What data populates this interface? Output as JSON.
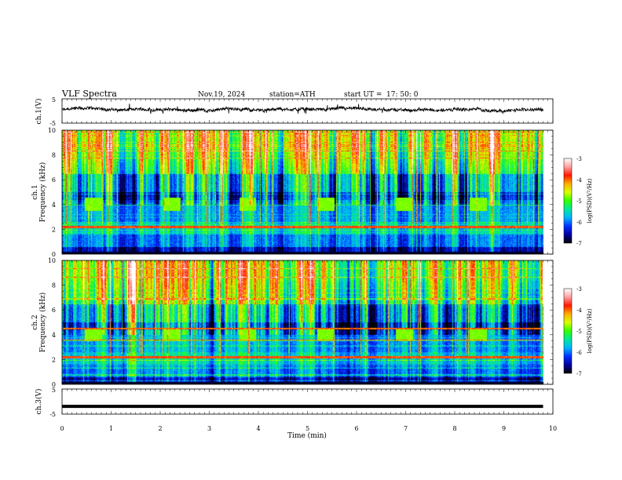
{
  "header": {
    "title": "VLF  Spectra",
    "date": "Nov.19, 2024",
    "station": "station=ATH",
    "start_label": "start  UT  =",
    "start_time": "17: 50: 0"
  },
  "chart_data": [
    {
      "type": "line",
      "name": "ch1-waveform",
      "ylabel": "ch.1(V)",
      "ylim": [
        -5,
        5
      ],
      "ticks": [
        "5",
        "-5"
      ],
      "xlim": [
        0,
        10
      ],
      "series": [
        {
          "x": [
            0,
            9.8
          ],
          "approx_level": 0.5,
          "noise_amplitude": 1.2
        }
      ]
    },
    {
      "type": "heatmap",
      "name": "ch1-spectrogram",
      "ylabel_line1": "ch.1",
      "ylabel_line2": "Frequency (kHz)",
      "ylim": [
        0,
        10
      ],
      "yticks": [
        "10",
        "8",
        "6",
        "4",
        "2",
        "0"
      ],
      "xlim": [
        0,
        10
      ],
      "data_end_min": 9.8,
      "transmitter_bursts_min": [
        0.45,
        2.05,
        3.6,
        5.2,
        6.8,
        8.3
      ],
      "colorbar": {
        "label": "log(PSD)(V²/Hz)",
        "range": [
          -7,
          -3
        ],
        "ticks": [
          "-3",
          "-4",
          "-5",
          "-6",
          "-7"
        ]
      }
    },
    {
      "type": "heatmap",
      "name": "ch2-spectrogram",
      "ylabel_line1": "ch.2",
      "ylabel_line2": "Frequency (kHz)",
      "ylim": [
        0,
        10
      ],
      "yticks": [
        "10",
        "8",
        "6",
        "4",
        "2",
        "0"
      ],
      "xlim": [
        0,
        10
      ],
      "data_end_min": 9.8,
      "transmitter_bursts_min": [
        0.45,
        2.05,
        3.6,
        5.2,
        6.8,
        8.3
      ],
      "colorbar": {
        "label": "log(PSD)(V²/Hz)",
        "range": [
          -7,
          -3
        ],
        "ticks": [
          "-3",
          "-4",
          "-5",
          "-6",
          "-7"
        ]
      }
    },
    {
      "type": "line",
      "name": "ch3-waveform",
      "ylabel": "ch.3(V)",
      "ylim": [
        -5,
        5
      ],
      "ticks": [
        "5",
        "-5"
      ],
      "xlim": [
        0,
        10
      ],
      "series": [
        {
          "x": [
            0,
            9.8
          ],
          "approx_level": -1.9
        }
      ]
    }
  ],
  "x_axis": {
    "label": "Time  (min)",
    "ticks": [
      "0",
      "1",
      "2",
      "3",
      "4",
      "5",
      "6",
      "7",
      "8",
      "9",
      "10"
    ]
  },
  "colors": {
    "colormap": [
      "#000000",
      "#0000a0",
      "#0030ff",
      "#00b4ff",
      "#00e8a0",
      "#30ff00",
      "#d8ff00",
      "#ffb000",
      "#ff1800",
      "#ffa0a0",
      "#ffffff"
    ]
  }
}
